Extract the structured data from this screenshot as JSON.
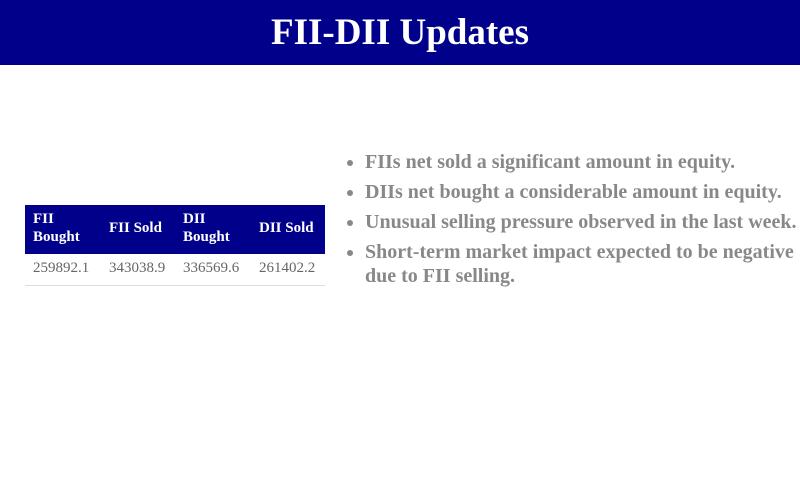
{
  "header": {
    "title": "FII-DII Updates"
  },
  "table": {
    "headers": [
      "FII Bought",
      "FII Sold",
      "DII Bought",
      "DII Sold"
    ],
    "rows": [
      [
        "259892.1",
        "343038.9",
        "336569.6",
        "261402.2"
      ]
    ]
  },
  "bullets": [
    "FIIs net sold a significant amount in equity.",
    "DIIs net bought a considerable amount in equity.",
    "Unusual selling pressure observed in the last week.",
    "Short-term market impact expected to be negative due to FII selling."
  ],
  "colors": {
    "header_bg": "#00008b",
    "bullet_text": "#888888"
  }
}
